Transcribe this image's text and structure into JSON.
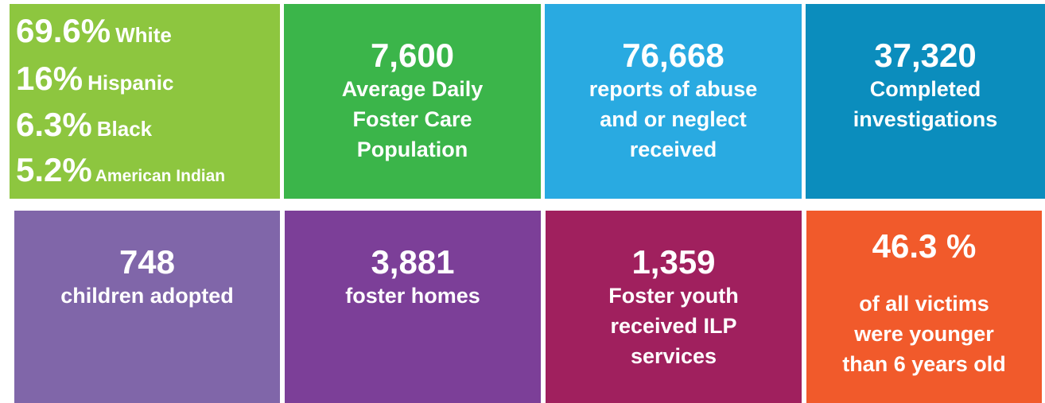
{
  "demographics": [
    {
      "value": "69.6%",
      "label": "White"
    },
    {
      "value": "16%",
      "label": "Hispanic"
    },
    {
      "value": "6.3%",
      "label": "Black"
    },
    {
      "value": "5.2%",
      "label": "American Indian"
    }
  ],
  "tiles": [
    {
      "number": "7,600",
      "lines": [
        "Average Daily",
        "Foster Care",
        "Population"
      ]
    },
    {
      "number": "76,668",
      "lines": [
        "reports of abuse",
        "and or neglect",
        "received"
      ]
    },
    {
      "number": "37,320",
      "lines": [
        "Completed",
        "investigations"
      ]
    },
    {
      "number": "748",
      "lines": [
        "children adopted"
      ]
    },
    {
      "number": "3,881",
      "lines": [
        "foster homes"
      ]
    },
    {
      "number": "1,359",
      "lines": [
        "Foster youth",
        "received ILP",
        "services"
      ]
    },
    {
      "number": "46.3 %",
      "lines": [
        "of all victims",
        "were younger",
        "than 6 years old"
      ]
    }
  ]
}
